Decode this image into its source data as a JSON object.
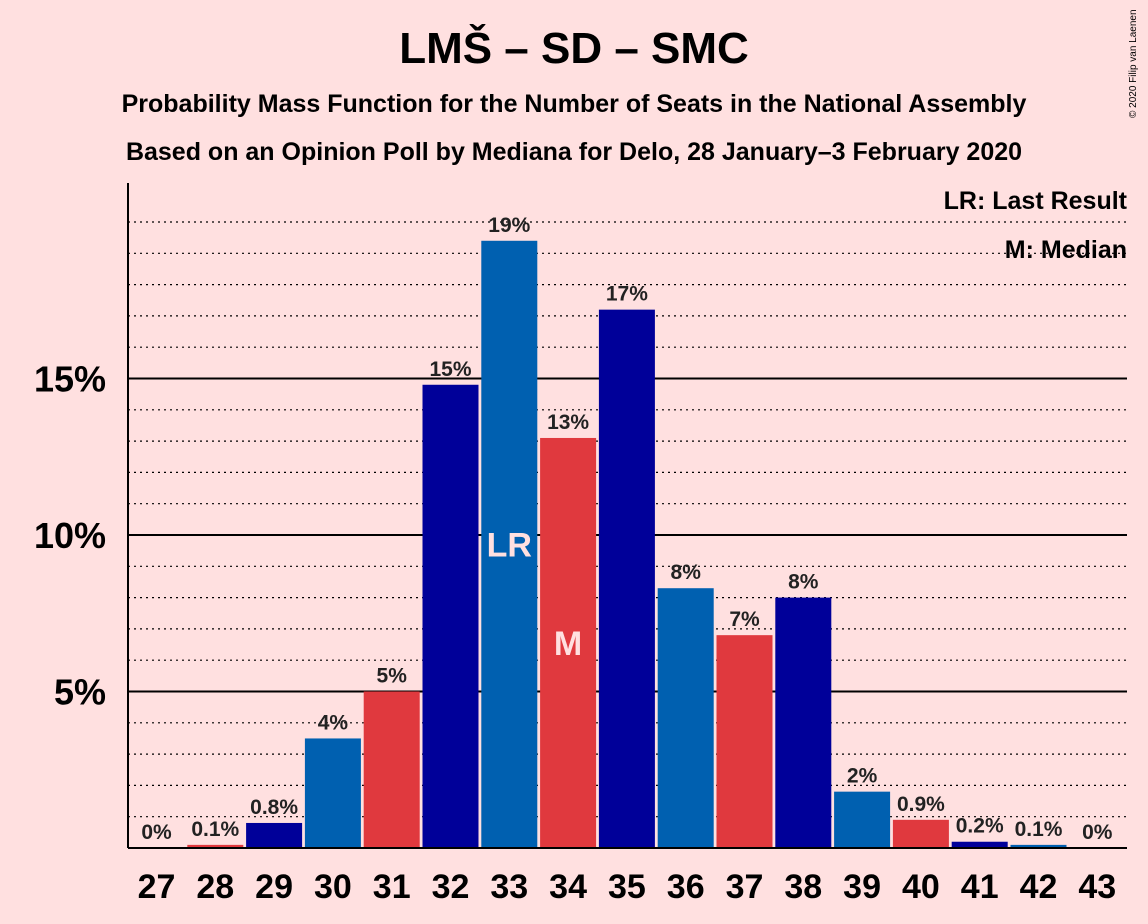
{
  "header": {
    "title": "LMŠ – SD – SMC",
    "subtitle_1": "Probability Mass Function for the Number of Seats in the National Assembly",
    "subtitle_2": "Based on an Opinion Poll by Mediana for Delo, 28 January–3 February 2020",
    "copyright": "© 2020 Filip van Laenen"
  },
  "legend": {
    "lr": "LR: Last Result",
    "m": "M: Median"
  },
  "chart_data": {
    "type": "bar",
    "title": "LMŠ – SD – SMC",
    "categories": [
      "27",
      "28",
      "29",
      "30",
      "31",
      "32",
      "33",
      "34",
      "35",
      "36",
      "37",
      "38",
      "39",
      "40",
      "41",
      "42",
      "43"
    ],
    "values": [
      0,
      0.1,
      0.8,
      3.5,
      5.0,
      14.8,
      19.4,
      13.1,
      17.2,
      8.3,
      6.8,
      8.0,
      1.8,
      0.9,
      0.2,
      0.1,
      0
    ],
    "value_labels": [
      "0%",
      "0.1%",
      "0.8%",
      "4%",
      "5%",
      "15%",
      "19%",
      "13%",
      "17%",
      "8%",
      "7%",
      "8%",
      "2%",
      "0.9%",
      "0.2%",
      "0.1%",
      "0%"
    ],
    "bar_colors": [
      "#000099",
      "#e0393e",
      "#000099",
      "#0060b0",
      "#e0393e",
      "#000099",
      "#0060b0",
      "#e0393e",
      "#000099",
      "#0060b0",
      "#e0393e",
      "#000099",
      "#0060b0",
      "#e0393e",
      "#000099",
      "#0060b0",
      "#e0393e"
    ],
    "markers": [
      {
        "category": "33",
        "text": "LR"
      },
      {
        "category": "34",
        "text": "M"
      }
    ],
    "yticks": [
      5,
      10,
      15
    ],
    "ytick_labels": [
      "5%",
      "10%",
      "15%"
    ],
    "ylim": [
      0,
      21.2
    ],
    "xlabel": "",
    "ylabel": "",
    "grid": true,
    "last_result_seats": 33,
    "median_seats": 34
  }
}
